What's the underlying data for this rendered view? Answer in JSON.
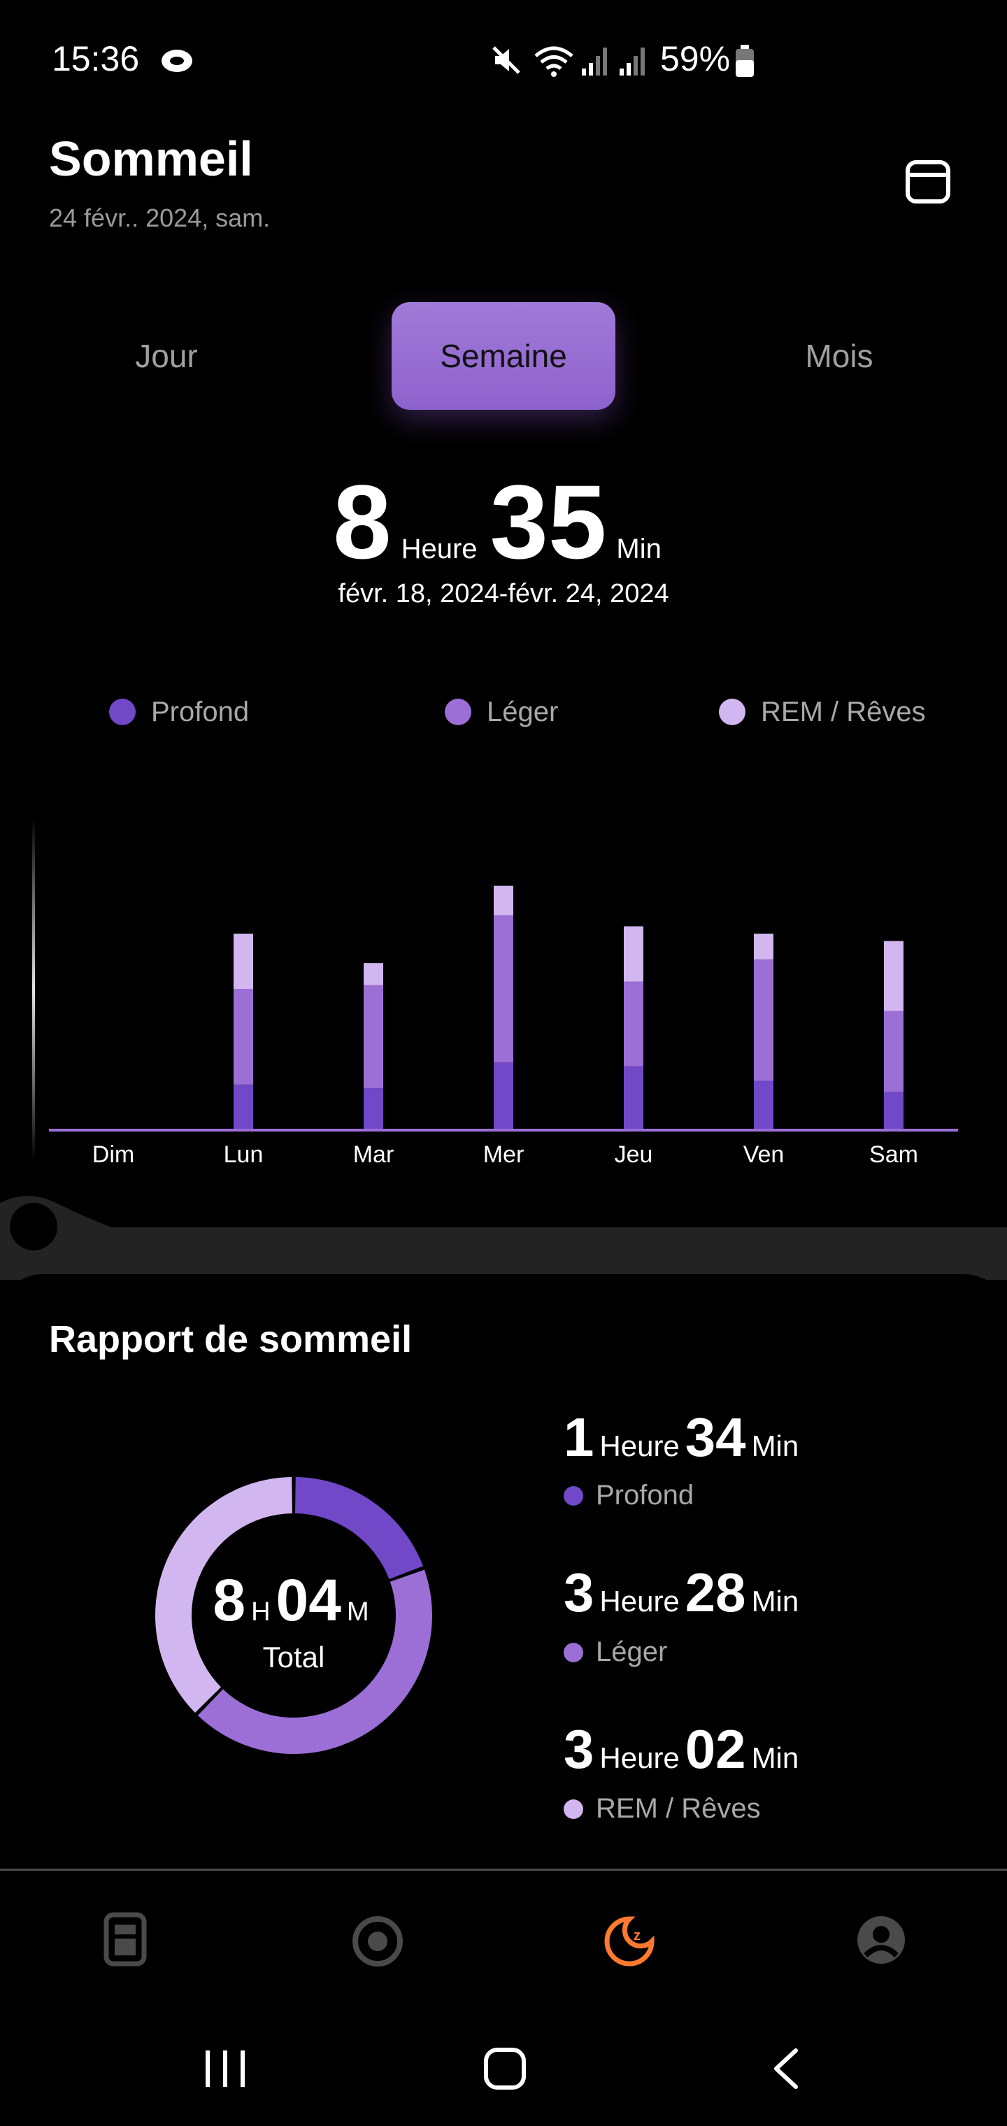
{
  "status_bar": {
    "time": "15:36",
    "battery_percent": "59%"
  },
  "header": {
    "title": "Sommeil",
    "date": "24 févr.. 2024, sam.",
    "calendar_icon": "calendar-icon"
  },
  "tabs": [
    {
      "label": "Jour",
      "selected": false
    },
    {
      "label": "Semaine",
      "selected": true
    },
    {
      "label": "Mois",
      "selected": false
    }
  ],
  "summary": {
    "hours": "8",
    "hours_unit": "Heure",
    "minutes": "35",
    "minutes_unit": "Min",
    "range": "févr. 18, 2024-févr. 24, 2024"
  },
  "legend": [
    {
      "label": "Profond",
      "color": "#7048c8"
    },
    {
      "label": "Léger",
      "color": "#9b6fd6"
    },
    {
      "label": "REM / Rêves",
      "color": "#d2b6f0"
    }
  ],
  "chart_data": {
    "type": "bar",
    "stacked": true,
    "categories": [
      "Dim",
      "Lun",
      "Mar",
      "Mer",
      "Jeu",
      "Ven",
      "Sam"
    ],
    "series": [
      {
        "name": "Profond",
        "values": [
          0,
          60,
          55,
          90,
          85,
          65,
          50
        ]
      },
      {
        "name": "Léger",
        "values": [
          0,
          130,
          140,
          200,
          115,
          165,
          110
        ]
      },
      {
        "name": "REM / Rêves",
        "values": [
          0,
          75,
          30,
          40,
          75,
          35,
          95
        ]
      }
    ],
    "colors": [
      "#7048c8",
      "#9b6fd6",
      "#d2b6f0"
    ],
    "ylim": [
      0,
      380
    ],
    "grid": false
  },
  "report": {
    "title": "Rapport de sommeil",
    "total_hours": "8",
    "total_h_unit": "H",
    "total_minutes": "04",
    "total_m_unit": "M",
    "total_label": "Total",
    "stages": [
      {
        "hours": "1",
        "hours_unit": "Heure",
        "minutes": "34",
        "minutes_unit": "Min",
        "label": "Profond",
        "color": "#7048c8",
        "minutes_total": 94
      },
      {
        "hours": "3",
        "hours_unit": "Heure",
        "minutes": "28",
        "minutes_unit": "Min",
        "label": "Léger",
        "color": "#9b6fd6",
        "minutes_total": 208
      },
      {
        "hours": "3",
        "hours_unit": "Heure",
        "minutes": "02",
        "minutes_unit": "Min",
        "label": "REM / Rêves",
        "color": "#d2b6f0",
        "minutes_total": 182
      }
    ]
  },
  "bottom_nav": [
    {
      "icon": "device-icon",
      "active": false
    },
    {
      "icon": "activity-ring-icon",
      "active": false
    },
    {
      "icon": "sleep-icon",
      "active": true
    },
    {
      "icon": "profile-icon",
      "active": false
    }
  ],
  "colors": {
    "accent": "#9b6fd6",
    "active_nav": "#ff7a2f",
    "inactive_nav": "#4a4a4a"
  }
}
